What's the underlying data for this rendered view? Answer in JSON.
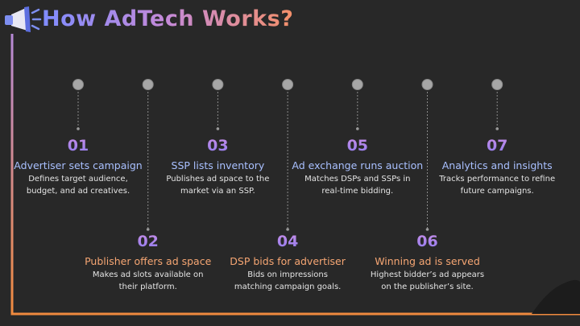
{
  "header": {
    "title": "How AdTech Works?"
  },
  "steps": [
    {
      "number": "01",
      "title": "Advertiser sets campaign",
      "description": [
        "Defines target audience,",
        "budget, and ad creatives."
      ]
    },
    {
      "number": "02",
      "title": "Publisher offers ad space",
      "description": [
        "Makes ad slots available on",
        "their platform."
      ]
    },
    {
      "number": "03",
      "title": "SSP lists inventory",
      "description": [
        "Publishes ad space to the",
        "market via an SSP."
      ]
    },
    {
      "number": "04",
      "title": "DSP bids for advertiser",
      "description": [
        "Bids on impressions",
        "matching campaign goals."
      ]
    },
    {
      "number": "05",
      "title": "Ad exchange runs auction",
      "description": [
        "Matches DSPs and SSPs in",
        "real-time bidding."
      ]
    },
    {
      "number": "06",
      "title": "Winning ad is served",
      "description": [
        "Highest bidder’s ad appears",
        "on the publisher’s site."
      ]
    },
    {
      "number": "07",
      "title": "Analytics and insights",
      "description": [
        "Tracks performance to refine",
        "future campaigns."
      ]
    }
  ]
}
